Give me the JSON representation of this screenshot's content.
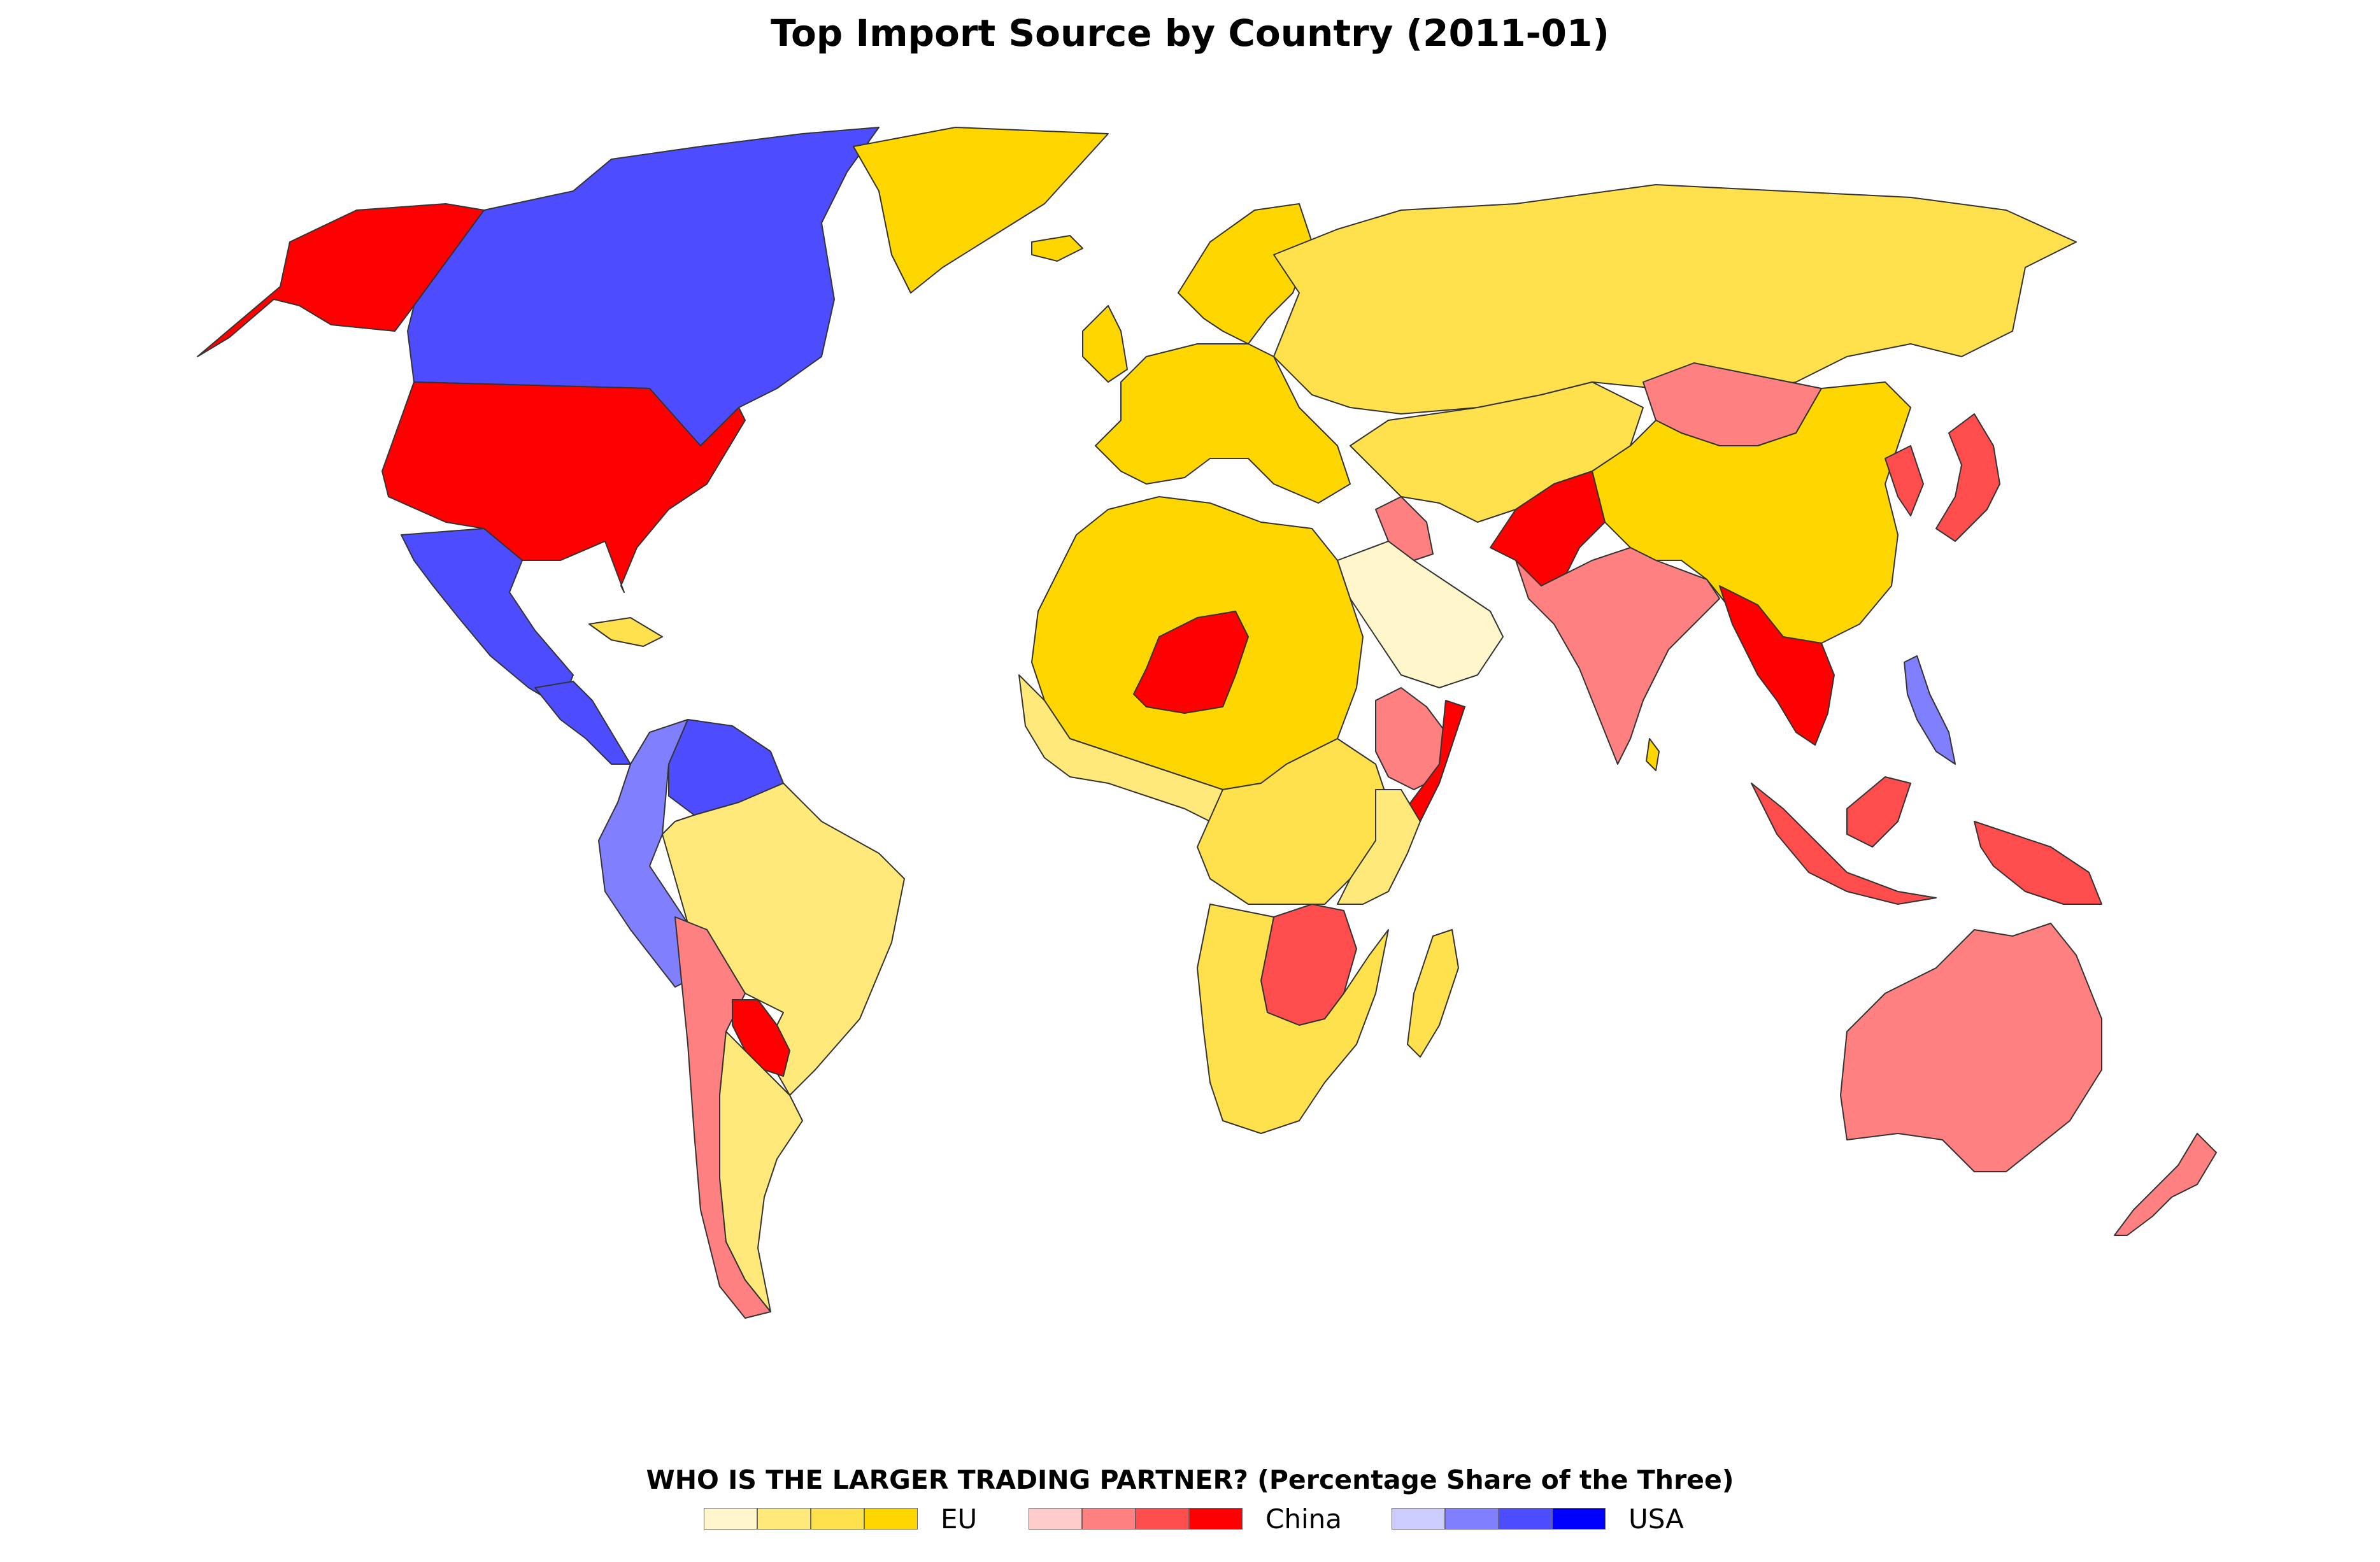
{
  "title": "Top Import Source by Country (2011-01)",
  "legend": {
    "title": "WHO IS THE LARGER TRADING PARTNER? (Percentage Share of the Three)",
    "groups": [
      {
        "label": "EU",
        "colors": [
          "#fff6cc",
          "#ffe97a",
          "#ffe04d",
          "#ffd700"
        ]
      },
      {
        "label": "China",
        "colors": [
          "#ffcccc",
          "#ff8080",
          "#ff4d4d",
          "#ff0000"
        ]
      },
      {
        "label": "USA",
        "colors": [
          "#ccccff",
          "#8080ff",
          "#4d4dff",
          "#0000ff"
        ]
      }
    ]
  },
  "regions": [
    {
      "name": "alaska",
      "partner": "China",
      "level": 4
    },
    {
      "name": "canada",
      "partner": "USA",
      "level": 3
    },
    {
      "name": "usa",
      "partner": "China",
      "level": 4
    },
    {
      "name": "mexico",
      "partner": "USA",
      "level": 3
    },
    {
      "name": "central-america",
      "partner": "USA",
      "level": 3
    },
    {
      "name": "greenland",
      "partner": "EU",
      "level": 4
    },
    {
      "name": "northwest-south-america",
      "partner": "USA",
      "level": 2
    },
    {
      "name": "venezuela-guianas",
      "partner": "USA",
      "level": 3
    },
    {
      "name": "brazil",
      "partner": "EU",
      "level": 2
    },
    {
      "name": "bolivia-chile",
      "partner": "China",
      "level": 2
    },
    {
      "name": "paraguay",
      "partner": "China",
      "level": 4
    },
    {
      "name": "argentina",
      "partner": "EU",
      "level": 2
    },
    {
      "name": "scandinavia",
      "partner": "EU",
      "level": 4
    },
    {
      "name": "western-europe",
      "partner": "EU",
      "level": 4
    },
    {
      "name": "russia",
      "partner": "EU",
      "level": 3
    },
    {
      "name": "kazakhstan-central-asia",
      "partner": "EU",
      "level": 3
    },
    {
      "name": "mongolia",
      "partner": "China",
      "level": 2
    },
    {
      "name": "china",
      "partner": "EU",
      "level": 4
    },
    {
      "name": "korea-japan",
      "partner": "China",
      "level": 3
    },
    {
      "name": "north-africa",
      "partner": "EU",
      "level": 4
    },
    {
      "name": "west-africa",
      "partner": "EU",
      "level": 2
    },
    {
      "name": "niger",
      "partner": "China",
      "level": 4
    },
    {
      "name": "central-africa",
      "partner": "EU",
      "level": 3
    },
    {
      "name": "arabia",
      "partner": "EU",
      "level": 1
    },
    {
      "name": "iraq",
      "partner": "China",
      "level": 2
    },
    {
      "name": "ethiopia-horn",
      "partner": "China",
      "level": 2
    },
    {
      "name": "somalia",
      "partner": "China",
      "level": 4
    },
    {
      "name": "east-africa",
      "partner": "EU",
      "level": 2
    },
    {
      "name": "zambia-zimbabwe",
      "partner": "China",
      "level": 3
    },
    {
      "name": "southern-africa",
      "partner": "EU",
      "level": 3
    },
    {
      "name": "madagascar",
      "partner": "EU",
      "level": 3
    },
    {
      "name": "india",
      "partner": "China",
      "level": 2
    },
    {
      "name": "pakistan-afghanistan",
      "partner": "China",
      "level": 4
    },
    {
      "name": "myanmar-indochina",
      "partner": "China",
      "level": 4
    },
    {
      "name": "indonesia",
      "partner": "China",
      "level": 3
    },
    {
      "name": "philippines",
      "partner": "USA",
      "level": 2
    },
    {
      "name": "papua",
      "partner": "China",
      "level": 3
    },
    {
      "name": "australia",
      "partner": "China",
      "level": 2
    },
    {
      "name": "new-zealand",
      "partner": "China",
      "level": 2
    },
    {
      "name": "uk-ireland",
      "partner": "EU",
      "level": 4
    },
    {
      "name": "iceland",
      "partner": "EU",
      "level": 4
    },
    {
      "name": "cuba",
      "partner": "EU",
      "level": 3
    },
    {
      "name": "sri-lanka",
      "partner": "EU",
      "level": 4
    }
  ]
}
